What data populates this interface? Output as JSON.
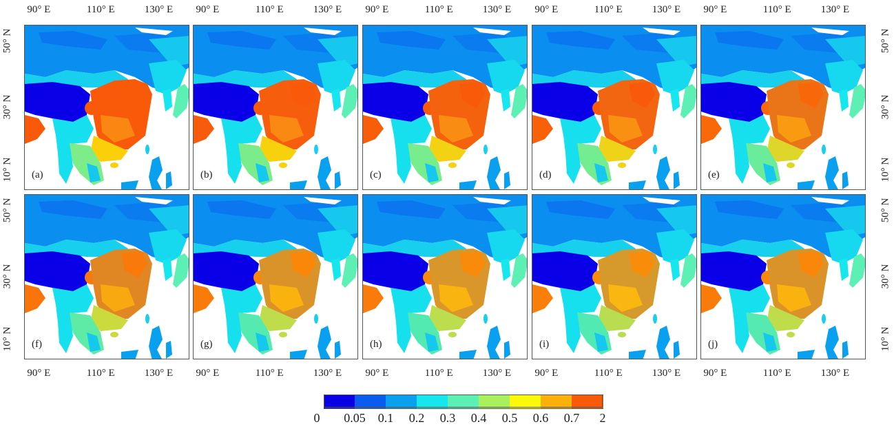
{
  "panels": [
    {
      "label": "(a)",
      "v": 1.0,
      "sat": 1.0
    },
    {
      "label": "(b)",
      "v": 0.98,
      "sat": 0.95
    },
    {
      "label": "(c)",
      "v": 0.95,
      "sat": 0.92
    },
    {
      "label": "(d)",
      "v": 0.92,
      "sat": 0.88
    },
    {
      "label": "(e)",
      "v": 0.82,
      "sat": 0.75
    },
    {
      "label": "(f)",
      "v": 0.7,
      "sat": 0.65
    },
    {
      "label": "(g)",
      "v": 0.62,
      "sat": 0.58
    },
    {
      "label": "(h)",
      "v": 0.6,
      "sat": 0.55
    },
    {
      "label": "(i)",
      "v": 0.58,
      "sat": 0.52
    },
    {
      "label": "(j)",
      "v": 0.62,
      "sat": 0.55
    }
  ],
  "axes": {
    "lon_ticks": [
      "90° E",
      "110° E",
      "130° E"
    ],
    "lat_ticks": [
      "50° N",
      "30° N",
      "10° N"
    ]
  },
  "colorbar": {
    "labels": [
      "0",
      "0.05",
      "0.1",
      "0.2",
      "0.3",
      "0.4",
      "0.5",
      "0.6",
      "0.7",
      "2"
    ],
    "colors": [
      "#0a00e8",
      "#0a5cf0",
      "#0aa0f0",
      "#16e6ee",
      "#5cf0b4",
      "#a8f05c",
      "#fbf90a",
      "#fbb00a",
      "#f85a0a"
    ]
  },
  "palette": {
    "ocean": "#ffffff",
    "tibet": "#0a00e8",
    "north": "#0a8ef0",
    "plain": "#f86a14"
  }
}
